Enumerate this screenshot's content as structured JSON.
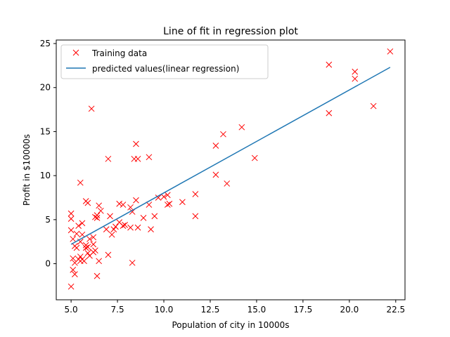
{
  "chart_data": {
    "type": "scatter",
    "title": "Line of fit in regression plot",
    "xlabel": "Population of city in 10000s",
    "ylabel": "Profit in $10000s",
    "xlim": [
      4.2,
      23.0
    ],
    "ylim": [
      -4.1,
      25.4
    ],
    "xticks": [
      "5.0",
      "7.5",
      "10.0",
      "12.5",
      "15.0",
      "17.5",
      "20.0",
      "22.5"
    ],
    "xtick_values": [
      5.0,
      7.5,
      10.0,
      12.5,
      15.0,
      17.5,
      20.0,
      22.5
    ],
    "yticks": [
      "0",
      "5",
      "10",
      "15",
      "20",
      "25"
    ],
    "ytick_values": [
      0,
      5,
      10,
      15,
      20,
      25
    ],
    "grid": false,
    "legend_position": "top-left",
    "series": [
      {
        "name": "Training data",
        "kind": "scatter",
        "marker": "x",
        "color": "#ff0000",
        "points": [
          [
            22.2,
            24.1
          ],
          [
            18.9,
            22.6
          ],
          [
            20.3,
            21.8
          ],
          [
            20.3,
            21.0
          ],
          [
            21.3,
            17.9
          ],
          [
            18.9,
            17.1
          ],
          [
            6.1,
            17.6
          ],
          [
            14.2,
            15.5
          ],
          [
            13.2,
            14.7
          ],
          [
            12.8,
            13.4
          ],
          [
            8.5,
            13.6
          ],
          [
            9.2,
            12.1
          ],
          [
            8.4,
            11.9
          ],
          [
            8.6,
            11.9
          ],
          [
            7.0,
            11.9
          ],
          [
            14.9,
            12.0
          ],
          [
            12.8,
            10.1
          ],
          [
            13.4,
            9.1
          ],
          [
            5.5,
            9.2
          ],
          [
            10.2,
            7.8
          ],
          [
            11.7,
            7.9
          ],
          [
            9.7,
            7.5
          ],
          [
            10.0,
            7.6
          ],
          [
            8.5,
            7.2
          ],
          [
            5.8,
            7.1
          ],
          [
            5.9,
            6.9
          ],
          [
            7.6,
            6.8
          ],
          [
            7.8,
            6.7
          ],
          [
            8.2,
            6.4
          ],
          [
            6.5,
            6.6
          ],
          [
            9.2,
            6.7
          ],
          [
            10.2,
            6.7
          ],
          [
            10.3,
            6.8
          ],
          [
            11.0,
            7.0
          ],
          [
            8.3,
            5.9
          ],
          [
            6.6,
            6.0
          ],
          [
            5.0,
            5.7
          ],
          [
            5.0,
            5.1
          ],
          [
            6.3,
            5.3
          ],
          [
            6.4,
            5.5
          ],
          [
            6.4,
            5.2
          ],
          [
            7.1,
            5.4
          ],
          [
            8.9,
            5.2
          ],
          [
            9.5,
            5.4
          ],
          [
            11.7,
            5.4
          ],
          [
            5.6,
            4.6
          ],
          [
            5.4,
            4.3
          ],
          [
            7.9,
            4.4
          ],
          [
            7.6,
            4.7
          ],
          [
            7.4,
            4.2
          ],
          [
            8.2,
            4.1
          ],
          [
            7.3,
            3.9
          ],
          [
            7.8,
            4.3
          ],
          [
            8.6,
            4.1
          ],
          [
            9.3,
            3.9
          ],
          [
            5.0,
            3.8
          ],
          [
            5.3,
            3.4
          ],
          [
            5.6,
            3.3
          ],
          [
            6.9,
            3.9
          ],
          [
            6.0,
            2.8
          ],
          [
            6.2,
            3.0
          ],
          [
            7.2,
            3.3
          ],
          [
            5.1,
            2.8
          ],
          [
            5.5,
            2.5
          ],
          [
            5.8,
            2.1
          ],
          [
            5.2,
            2.0
          ],
          [
            6.2,
            2.2
          ],
          [
            5.3,
            1.8
          ],
          [
            5.8,
            1.8
          ],
          [
            5.9,
            1.9
          ],
          [
            6.2,
            1.3
          ],
          [
            5.1,
            0.6
          ],
          [
            5.4,
            0.5
          ],
          [
            5.5,
            0.8
          ],
          [
            5.6,
            0.5
          ],
          [
            5.7,
            0.3
          ],
          [
            5.9,
            1.2
          ],
          [
            6.0,
            0.9
          ],
          [
            6.3,
            1.5
          ],
          [
            6.5,
            0.3
          ],
          [
            7.0,
            1.0
          ],
          [
            5.2,
            0.1
          ],
          [
            5.5,
            0.3
          ],
          [
            8.3,
            0.1
          ],
          [
            5.1,
            -0.7
          ],
          [
            5.2,
            -1.2
          ],
          [
            6.4,
            -1.4
          ],
          [
            5.0,
            -2.6
          ]
        ]
      },
      {
        "name": "predicted values(linear regression)",
        "kind": "line",
        "color": "#1f77b4",
        "x": [
          5.0,
          22.2
        ],
        "y": [
          2.2,
          22.3
        ]
      }
    ]
  }
}
